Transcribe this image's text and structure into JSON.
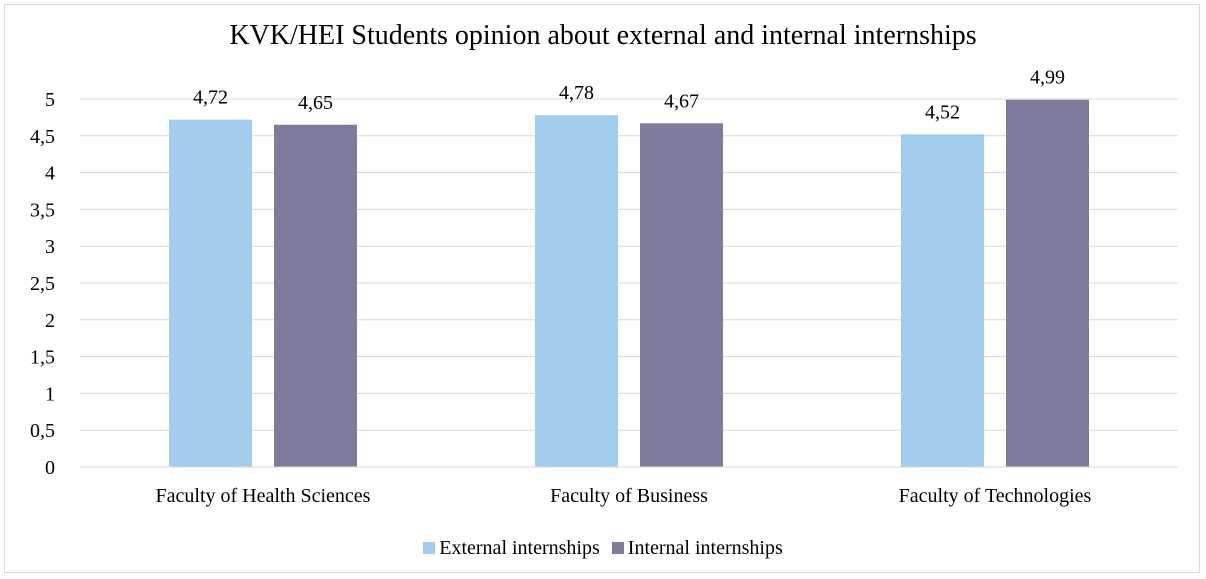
{
  "chart_data": {
    "type": "bar",
    "title": "KVK/HEI Students opinion about external and internal internships",
    "categories": [
      "Faculty of Health Sciences",
      "Faculty of Business",
      "Faculty of Technologies"
    ],
    "series": [
      {
        "name": "External internships",
        "values": [
          4.72,
          4.78,
          4.52
        ],
        "labels": [
          "4,72",
          "4,78",
          "4,52"
        ],
        "color": "#a3cdec"
      },
      {
        "name": "Internal internships",
        "values": [
          4.65,
          4.67,
          4.99
        ],
        "labels": [
          "4,65",
          "4,67",
          "4,99"
        ],
        "color": "#7f7b9b"
      }
    ],
    "ylim": [
      0,
      5
    ],
    "yticks": [
      0,
      0.5,
      1,
      1.5,
      2,
      2.5,
      3,
      3.5,
      4,
      4.5,
      5
    ],
    "ytick_labels": [
      "0",
      "0,5",
      "1",
      "1,5",
      "2",
      "2,5",
      "3",
      "3,5",
      "4",
      "4,5",
      "5"
    ],
    "grid": true,
    "legend_position": "bottom"
  }
}
